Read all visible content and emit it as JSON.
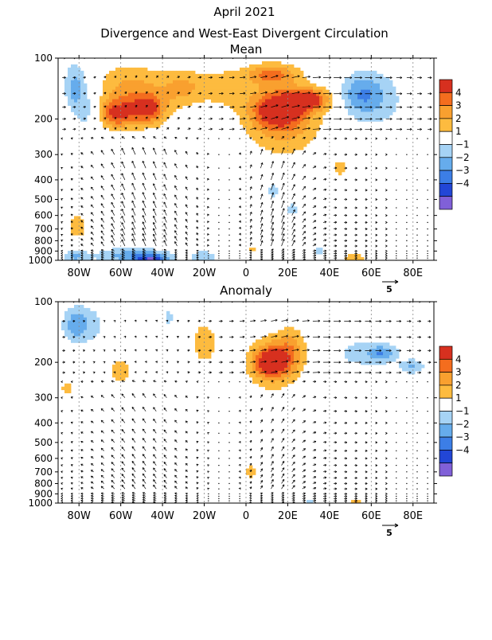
{
  "title": {
    "line1": "April 2021",
    "line2": "Divergence and West-East Divergent Circulation"
  },
  "colors": {
    "4": "#d7301f",
    "3": "#f46d1e",
    "2": "#f9a02f",
    "1.5": "#fdbb3f",
    "-1": "#a6d3f5",
    "-2": "#66acec",
    "-3": "#3c7ee6",
    "-4": "#2246d6",
    "-5": "#8060d8"
  },
  "colorbar": {
    "labels": [
      "4",
      "3",
      "2",
      "1",
      "−1",
      "−2",
      "−3",
      "−4"
    ],
    "bins": [
      "#d7301f",
      "#f46d1e",
      "#f9a02f",
      "#fdbb3f",
      "#ffffff",
      "#a6d3f5",
      "#66acec",
      "#3c7ee6",
      "#2246d6",
      "#8060d8"
    ]
  },
  "vector_key": {
    "value": "5"
  },
  "chart_data": [
    {
      "type": "heatmap",
      "title": "Mean",
      "x_ticks": [
        "80W",
        "60W",
        "40W",
        "20W",
        "0",
        "20E",
        "40E",
        "60E",
        "80E"
      ],
      "x_tick_values": [
        -80,
        -60,
        -40,
        -20,
        0,
        20,
        40,
        60,
        80
      ],
      "xlim": [
        -90,
        90
      ],
      "y_ticks": [
        "100",
        "200",
        "300",
        "400",
        "500",
        "600",
        "700",
        "800",
        "900",
        "1000"
      ],
      "y_tick_values": [
        100,
        200,
        300,
        400,
        500,
        600,
        700,
        800,
        900,
        1000
      ],
      "ylim": [
        100,
        1000
      ],
      "y_scale": "log",
      "levels": [
        -4,
        -3,
        -2,
        -1,
        1,
        2,
        3,
        4
      ],
      "features": [
        {
          "lon": 30,
          "lon_w": 10,
          "p": 160,
          "p_w": 0.12,
          "value": 4.3
        },
        {
          "lon": 15,
          "lon_w": 12,
          "p": 180,
          "p_w": 0.2,
          "value": 4
        },
        {
          "lon": 12,
          "lon_w": 12,
          "p": 120,
          "p_w": 0.12,
          "value": 3
        },
        {
          "lon": -62,
          "lon_w": 8,
          "p": 190,
          "p_w": 0.15,
          "value": 3.5
        },
        {
          "lon": -47,
          "lon_w": 8,
          "p": 180,
          "p_w": 0.16,
          "value": 3.5
        },
        {
          "lon": -55,
          "lon_w": 18,
          "p": 150,
          "p_w": 0.32,
          "value": 2.5
        },
        {
          "lon": -30,
          "lon_w": 10,
          "p": 140,
          "p_w": 0.2,
          "value": 2
        },
        {
          "lon": -10,
          "lon_w": 12,
          "p": 140,
          "p_w": 0.22,
          "value": 1.6
        },
        {
          "lon": 18,
          "lon_w": 18,
          "p": 200,
          "p_w": 0.4,
          "value": 2.5
        },
        {
          "lon": -82,
          "lon_w": 5,
          "p": 140,
          "p_w": 0.28,
          "value": -2.5
        },
        {
          "lon": -75,
          "lon_w": 6,
          "p": 180,
          "p_w": 0.35,
          "value": -1.5
        },
        {
          "lon": 55,
          "lon_w": 10,
          "p": 150,
          "p_w": 0.22,
          "value": -2
        },
        {
          "lon": 62,
          "lon_w": 15,
          "p": 160,
          "p_w": 0.35,
          "value": -1.5
        },
        {
          "lon": 45,
          "lon_w": 4,
          "p": 350,
          "p_w": 0.1,
          "value": 1.6
        },
        {
          "lon": 13,
          "lon_w": 4,
          "p": 450,
          "p_w": 0.1,
          "value": -1.5
        },
        {
          "lon": 22,
          "lon_w": 4,
          "p": 560,
          "p_w": 0.09,
          "value": -1.4
        },
        {
          "lon": -81,
          "lon_w": 5,
          "p": 680,
          "p_w": 0.15,
          "value": 1.7
        },
        {
          "lon": -55,
          "lon_w": 18,
          "p": 950,
          "p_w": 0.09,
          "value": -2.5
        },
        {
          "lon": -45,
          "lon_w": 8,
          "p": 990,
          "p_w": 0.06,
          "value": -3.5
        },
        {
          "lon": -82,
          "lon_w": 6,
          "p": 960,
          "p_w": 0.08,
          "value": -2
        },
        {
          "lon": -20,
          "lon_w": 8,
          "p": 960,
          "p_w": 0.08,
          "value": -1.5
        },
        {
          "lon": 52,
          "lon_w": 6,
          "p": 980,
          "p_w": 0.05,
          "value": 2
        },
        {
          "lon": 35,
          "lon_w": 3,
          "p": 900,
          "p_w": 0.08,
          "value": -1.5
        },
        {
          "lon": 3,
          "lon_w": 2,
          "p": 880,
          "p_w": 0.05,
          "value": 1.6
        }
      ]
    },
    {
      "type": "heatmap",
      "title": "Anomaly",
      "x_ticks": [
        "80W",
        "60W",
        "40W",
        "20W",
        "0",
        "20E",
        "40E",
        "60E",
        "80E"
      ],
      "x_tick_values": [
        -80,
        -60,
        -40,
        -20,
        0,
        20,
        40,
        60,
        80
      ],
      "xlim": [
        -90,
        90
      ],
      "y_ticks": [
        "100",
        "200",
        "300",
        "400",
        "500",
        "600",
        "700",
        "800",
        "900",
        "1000"
      ],
      "y_tick_values": [
        100,
        200,
        300,
        400,
        500,
        600,
        700,
        800,
        900,
        1000
      ],
      "ylim": [
        100,
        1000
      ],
      "y_scale": "log",
      "levels": [
        -4,
        -3,
        -2,
        -1,
        1,
        2,
        3,
        4
      ],
      "features": [
        {
          "lon": 12,
          "lon_w": 8,
          "p": 200,
          "p_w": 0.16,
          "value": 3.6
        },
        {
          "lon": 13,
          "lon_w": 12,
          "p": 200,
          "p_w": 0.3,
          "value": 2.6
        },
        {
          "lon": 22,
          "lon_w": 7,
          "p": 170,
          "p_w": 0.25,
          "value": 1.8
        },
        {
          "lon": -20,
          "lon_w": 6,
          "p": 160,
          "p_w": 0.25,
          "value": 1.8
        },
        {
          "lon": -60,
          "lon_w": 6,
          "p": 220,
          "p_w": 0.14,
          "value": 1.7
        },
        {
          "lon": -86,
          "lon_w": 3,
          "p": 270,
          "p_w": 0.08,
          "value": 1.6
        },
        {
          "lon": 2,
          "lon_w": 3,
          "p": 700,
          "p_w": 0.08,
          "value": 1.7
        },
        {
          "lon": -82,
          "lon_w": 6,
          "p": 130,
          "p_w": 0.2,
          "value": -2
        },
        {
          "lon": -75,
          "lon_w": 10,
          "p": 130,
          "p_w": 0.25,
          "value": -1.3
        },
        {
          "lon": -37,
          "lon_w": 4,
          "p": 120,
          "p_w": 0.15,
          "value": -1.2
        },
        {
          "lon": 57,
          "lon_w": 18,
          "p": 180,
          "p_w": 0.2,
          "value": -1.4
        },
        {
          "lon": 65,
          "lon_w": 6,
          "p": 180,
          "p_w": 0.08,
          "value": -2
        },
        {
          "lon": 80,
          "lon_w": 6,
          "p": 210,
          "p_w": 0.08,
          "value": -2
        },
        {
          "lon": 53,
          "lon_w": 3,
          "p": 990,
          "p_w": 0.03,
          "value": 2.2
        },
        {
          "lon": 31,
          "lon_w": 2,
          "p": 980,
          "p_w": 0.04,
          "value": -1.6
        }
      ]
    }
  ]
}
